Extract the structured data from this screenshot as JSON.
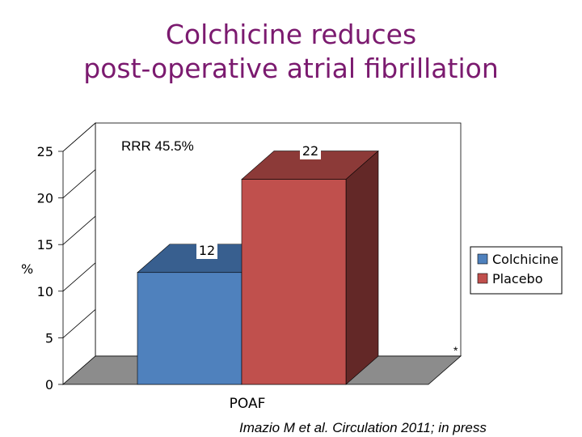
{
  "title_lines": [
    "Colchicine reduces",
    "post-operative atrial fibrillation"
  ],
  "citation": "Imazio M et al. Circulation 2011; in press",
  "chart_data": {
    "type": "bar",
    "title": "Colchicine reduces post-operative atrial fibrillation",
    "categories": [
      "POAF"
    ],
    "series": [
      {
        "name": "Colchicine",
        "values": [
          12
        ],
        "color": "#4f81bd",
        "top_color": "#385f8f",
        "side_color": "#2f4f76"
      },
      {
        "name": "Placebo",
        "values": [
          22
        ],
        "color": "#c0504d",
        "top_color": "#8c3a38",
        "side_color": "#632827"
      }
    ],
    "data_labels": [
      "12",
      "22"
    ],
    "ylabel": "%",
    "ylim": [
      0,
      25
    ],
    "yticks": [
      0,
      5,
      10,
      15,
      20,
      25
    ],
    "annotation": "RRR 45.5%",
    "significance_mark": "*",
    "legend_position": "right",
    "style": "3d-bar"
  }
}
